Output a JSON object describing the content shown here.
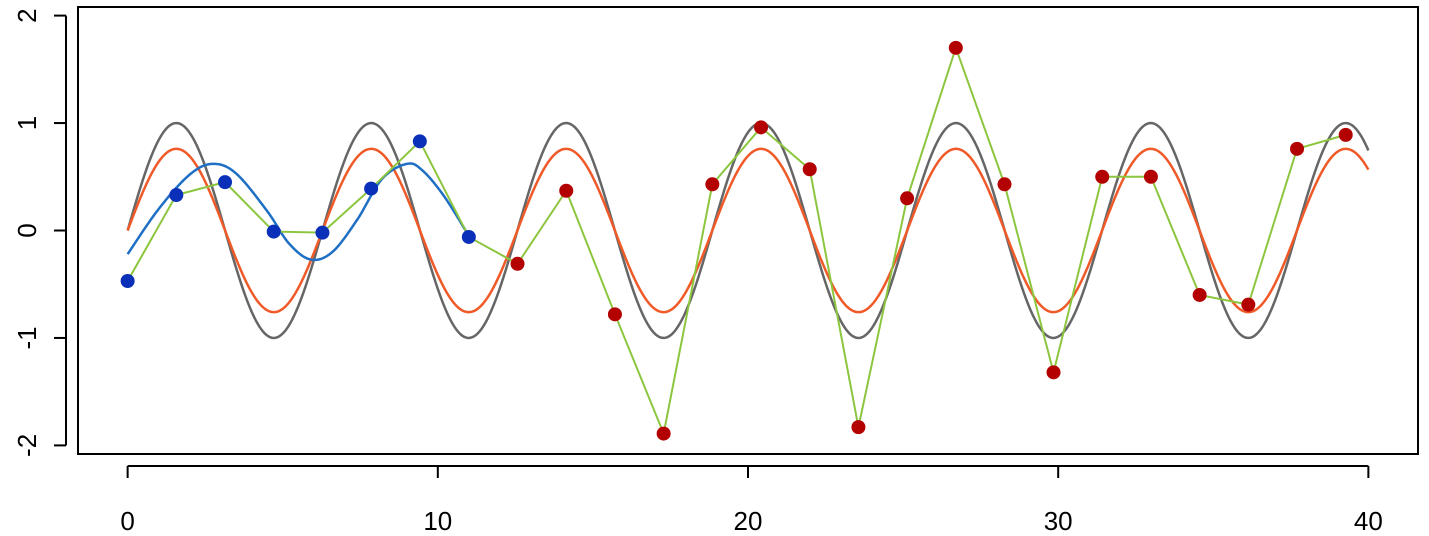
{
  "chart_data": {
    "type": "scatter",
    "title": "",
    "xlabel": "",
    "ylabel": "",
    "xlim": [
      -1.6,
      41.6
    ],
    "ylim": [
      -2.08,
      2.08
    ],
    "x_ticks": [
      0,
      10,
      20,
      30,
      40
    ],
    "x_tick_labels": [
      "0",
      "10",
      "20",
      "30",
      "40"
    ],
    "y_ticks": [
      -2,
      -1,
      0,
      1,
      2
    ],
    "y_tick_labels": [
      "-2",
      "-1",
      "0",
      "1",
      "2"
    ],
    "grid": false,
    "legend": "none",
    "colors": {
      "sine_curve": "#666666",
      "attenuated_curve": "#f05a28",
      "fitted_curve": "#1f6fc4",
      "connecting_line": "#8cc63f",
      "training_points": "#0a2fb8",
      "test_points": "#b30000"
    },
    "series": [
      {
        "style": "line",
        "color_key": "sine_curve",
        "function": "sin",
        "amplitude": 1.0,
        "x_range": [
          0,
          40
        ]
      },
      {
        "style": "line",
        "color_key": "attenuated_curve",
        "function": "sin",
        "amplitude": 0.76,
        "x_range": [
          0,
          40
        ]
      },
      {
        "style": "line",
        "color_key": "fitted_curve",
        "x": [
          0,
          1,
          2,
          2.75,
          3.5,
          4.5,
          5.2,
          5.9,
          6.6,
          7.4,
          8.2,
          9.0,
          9.5,
          10.2,
          11.0
        ],
        "y": [
          -0.22,
          0.2,
          0.52,
          0.62,
          0.53,
          0.18,
          -0.12,
          -0.27,
          -0.2,
          0.1,
          0.48,
          0.62,
          0.56,
          0.32,
          -0.05
        ]
      },
      {
        "style": "line",
        "color_key": "connecting_line",
        "x": [
          0,
          1.57,
          3.14,
          4.71,
          6.28,
          7.85,
          9.42,
          11.0,
          12.57,
          14.14,
          15.71,
          17.28,
          18.85,
          20.42,
          21.99,
          23.56,
          25.13,
          26.7,
          28.27,
          29.85,
          31.42,
          32.99,
          34.56,
          36.13,
          37.7,
          39.27
        ],
        "y": [
          -0.47,
          0.33,
          0.45,
          -0.01,
          -0.02,
          0.39,
          0.83,
          -0.06,
          -0.31,
          0.37,
          -0.78,
          -1.89,
          0.43,
          0.96,
          0.57,
          -1.83,
          0.3,
          1.7,
          0.43,
          -1.32,
          0.5,
          0.5,
          -0.6,
          -0.69,
          0.76,
          0.89
        ]
      },
      {
        "style": "points",
        "color_key": "training_points",
        "x": [
          0,
          1.57,
          3.14,
          4.71,
          6.28,
          7.85,
          9.42,
          11.0
        ],
        "y": [
          -0.47,
          0.33,
          0.45,
          -0.01,
          -0.02,
          0.39,
          0.83,
          -0.06
        ]
      },
      {
        "style": "points",
        "color_key": "test_points",
        "x": [
          12.57,
          14.14,
          15.71,
          17.28,
          18.85,
          20.42,
          21.99,
          23.56,
          25.13,
          26.7,
          28.27,
          29.85,
          31.42,
          32.99,
          34.56,
          36.13,
          37.7,
          39.27
        ],
        "y": [
          -0.31,
          0.37,
          -0.78,
          -1.89,
          0.43,
          0.96,
          0.57,
          -1.83,
          0.3,
          1.7,
          0.43,
          -1.32,
          0.5,
          0.5,
          -0.6,
          -0.69,
          0.76,
          0.89
        ]
      }
    ]
  }
}
